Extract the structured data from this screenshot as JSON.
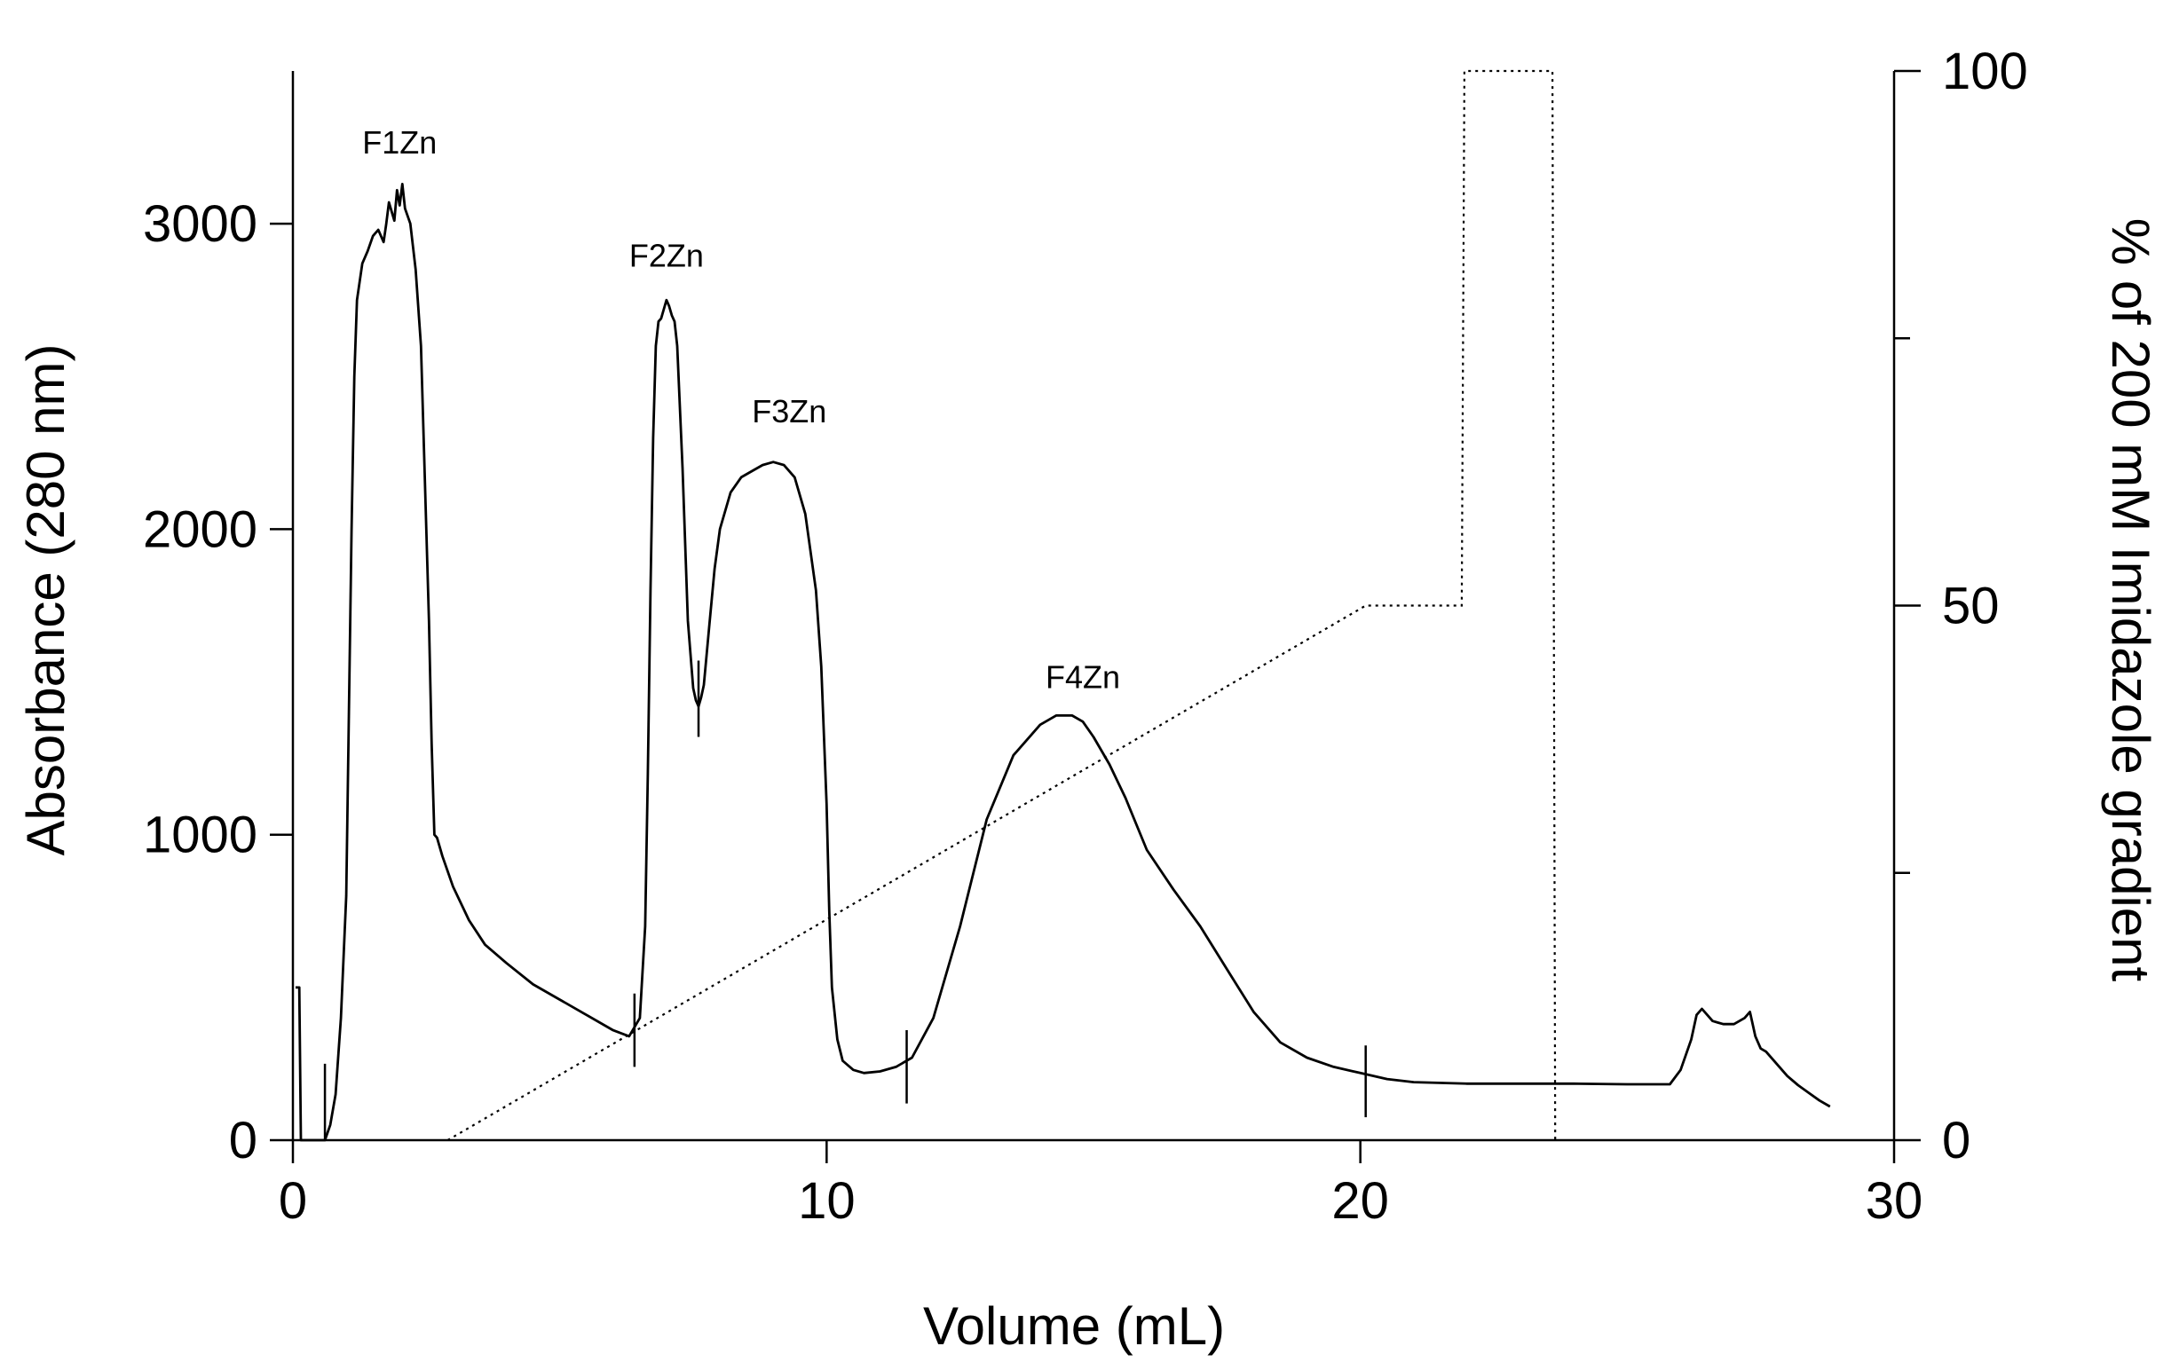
{
  "chart_data": {
    "type": "line",
    "xlabel": "Volume (mL)",
    "ylabel": "Absorbance (280 nm)",
    "y2label": "% of 200 mM Imidazole gradient",
    "xlim": [
      0,
      30
    ],
    "ylim": [
      0,
      3500
    ],
    "y2lim": [
      0,
      100
    ],
    "x_ticks": [
      0,
      10,
      20,
      30
    ],
    "y_ticks": [
      0,
      1000,
      2000,
      3000
    ],
    "y2_ticks": [
      0,
      50,
      100
    ],
    "y2_minor_ticks": [
      25,
      75
    ],
    "grid": false,
    "series": [
      {
        "axis": "left",
        "style": "solid",
        "x": [
          0.05,
          0.07,
          0.12,
          0.15,
          0.45,
          0.6,
          0.7,
          0.8,
          0.9,
          1.0,
          1.05,
          1.1,
          1.15,
          1.2,
          1.3,
          1.4,
          1.5,
          1.6,
          1.7,
          1.75,
          1.8,
          1.9,
          1.95,
          2.0,
          2.05,
          2.1,
          2.2,
          2.3,
          2.4,
          2.5,
          2.55,
          2.6,
          2.65,
          2.7,
          2.8,
          3.0,
          3.3,
          3.6,
          4.0,
          4.5,
          5.0,
          5.5,
          6.0,
          6.3,
          6.5,
          6.6,
          6.65,
          6.7,
          6.75,
          6.8,
          6.85,
          6.9,
          6.95,
          7.0,
          7.05,
          7.1,
          7.15,
          7.2,
          7.3,
          7.4,
          7.5,
          7.55,
          7.6,
          7.65,
          7.7,
          7.8,
          7.9,
          8.0,
          8.2,
          8.4,
          8.6,
          8.8,
          9.0,
          9.2,
          9.4,
          9.6,
          9.8,
          9.9,
          10.0,
          10.05,
          10.1,
          10.2,
          10.3,
          10.5,
          10.7,
          11.0,
          11.3,
          11.6,
          12.0,
          12.5,
          13.0,
          13.5,
          14.0,
          14.3,
          14.6,
          14.8,
          15.0,
          15.3,
          15.6,
          16.0,
          16.5,
          17.0,
          17.5,
          18.0,
          18.5,
          19.0,
          19.5,
          20.0,
          20.5,
          21.0,
          22.0,
          23.0,
          24.0,
          25.0,
          25.8,
          26.0,
          26.2,
          26.3,
          26.4,
          26.5,
          26.6,
          26.7,
          26.8,
          27.0,
          27.2,
          27.3,
          27.4,
          27.5,
          27.6,
          27.8,
          28.0,
          28.2,
          28.4,
          28.6,
          28.8
        ],
        "values": [
          500,
          500,
          500,
          0,
          0,
          0,
          50,
          150,
          400,
          800,
          1400,
          2000,
          2500,
          2750,
          2870,
          2910,
          2960,
          2980,
          2940,
          3000,
          3070,
          3010,
          3110,
          3060,
          3130,
          3050,
          3000,
          2850,
          2600,
          2000,
          1700,
          1300,
          1000,
          990,
          930,
          830,
          720,
          640,
          580,
          510,
          460,
          410,
          360,
          340,
          400,
          700,
          1200,
          1800,
          2300,
          2600,
          2680,
          2690,
          2720,
          2750,
          2730,
          2700,
          2680,
          2600,
          2200,
          1700,
          1480,
          1440,
          1420,
          1450,
          1490,
          1680,
          1870,
          2000,
          2120,
          2170,
          2190,
          2210,
          2220,
          2210,
          2170,
          2050,
          1800,
          1550,
          1100,
          750,
          500,
          330,
          260,
          230,
          220,
          225,
          240,
          270,
          400,
          700,
          1050,
          1260,
          1360,
          1390,
          1390,
          1370,
          1320,
          1230,
          1120,
          950,
          820,
          700,
          560,
          420,
          320,
          270,
          240,
          220,
          200,
          190,
          185,
          185,
          185,
          183,
          183,
          230,
          330,
          410,
          430,
          410,
          390,
          385,
          380,
          380,
          400,
          420,
          340,
          300,
          290,
          250,
          210,
          180,
          155,
          130,
          110
        ]
      },
      {
        "axis": "right",
        "style": "dotted",
        "x": [
          2.9,
          20.1,
          21.9,
          21.95,
          23.6,
          23.65
        ],
        "values": [
          0,
          50,
          50,
          100,
          100,
          0
        ]
      }
    ],
    "fraction_markers": [
      {
        "x": 0.6,
        "y_low": 0,
        "y_high": 250
      },
      {
        "x": 6.4,
        "y_low": 240,
        "y_high": 480
      },
      {
        "x": 7.6,
        "y_low": 1320,
        "y_high": 1570
      },
      {
        "x": 11.5,
        "y_low": 120,
        "y_high": 360
      },
      {
        "x": 20.1,
        "y_low": 75,
        "y_high": 310
      }
    ],
    "annotations": [
      {
        "text": "F1Zn",
        "x": 2.0,
        "y": 3230
      },
      {
        "text": "F2Zn",
        "x": 7.0,
        "y": 2860
      },
      {
        "text": "F3Zn",
        "x": 9.3,
        "y": 2350
      },
      {
        "text": "F4Zn",
        "x": 14.8,
        "y": 1480
      }
    ]
  }
}
